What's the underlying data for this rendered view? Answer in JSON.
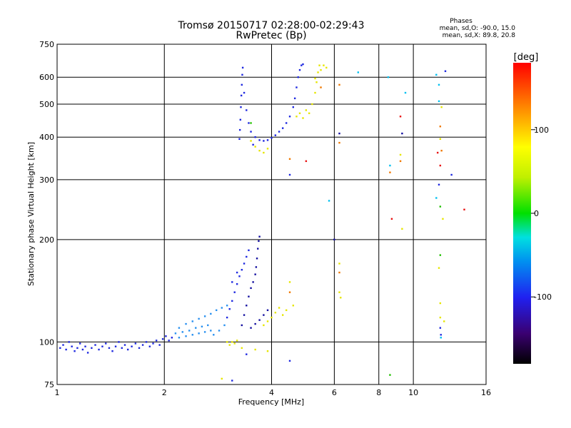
{
  "chart_data": {
    "type": "scatter",
    "title": "Tromsø 20150717 02:28:00-02:29:43",
    "subtitle": "RwPretec (Bp)",
    "stats": {
      "heading": "Phases",
      "line1": "mean, sd,O: -90.0, 15.0",
      "line2": "mean, sd,X:  89.8, 20.8"
    },
    "xlabel": "Frequency [MHz]",
    "ylabel": "Stationary phase Virtual Height [km]",
    "x_scale": "log2",
    "y_scale": "log",
    "xlim": [
      1,
      16
    ],
    "ylim": [
      75,
      750
    ],
    "x_ticks": [
      1,
      2,
      4,
      6,
      8,
      10,
      16
    ],
    "y_ticks": [
      75,
      100,
      200,
      300,
      400,
      500,
      600,
      750
    ],
    "grid": true,
    "colorbar": {
      "label": "[deg]",
      "range": [
        -180,
        180
      ],
      "ticks": [
        100,
        0,
        -100
      ]
    },
    "colors": {
      "blue": "#1e28e0",
      "navy": "#1410a0",
      "lblue": "#2890f0",
      "cyan": "#00c0f0",
      "yellow": "#e6e600",
      "orange": "#f07800",
      "red": "#e81010",
      "green": "#20c000"
    },
    "points": [
      {
        "c": "blue",
        "f": 1.02,
        "h": 96
      },
      {
        "c": "blue",
        "f": 1.04,
        "h": 98
      },
      {
        "c": "blue",
        "f": 1.06,
        "h": 95
      },
      {
        "c": "blue",
        "f": 1.08,
        "h": 100
      },
      {
        "c": "blue",
        "f": 1.1,
        "h": 97
      },
      {
        "c": "blue",
        "f": 1.12,
        "h": 94
      },
      {
        "c": "blue",
        "f": 1.14,
        "h": 96
      },
      {
        "c": "blue",
        "f": 1.16,
        "h": 99
      },
      {
        "c": "blue",
        "f": 1.18,
        "h": 95
      },
      {
        "c": "blue",
        "f": 1.2,
        "h": 97
      },
      {
        "c": "blue",
        "f": 1.22,
        "h": 93
      },
      {
        "c": "blue",
        "f": 1.25,
        "h": 96
      },
      {
        "c": "blue",
        "f": 1.28,
        "h": 98
      },
      {
        "c": "blue",
        "f": 1.31,
        "h": 95
      },
      {
        "c": "blue",
        "f": 1.34,
        "h": 97
      },
      {
        "c": "blue",
        "f": 1.37,
        "h": 99
      },
      {
        "c": "blue",
        "f": 1.4,
        "h": 96
      },
      {
        "c": "blue",
        "f": 1.43,
        "h": 94
      },
      {
        "c": "blue",
        "f": 1.46,
        "h": 97
      },
      {
        "c": "blue",
        "f": 1.49,
        "h": 100
      },
      {
        "c": "blue",
        "f": 1.52,
        "h": 96
      },
      {
        "c": "blue",
        "f": 1.55,
        "h": 98
      },
      {
        "c": "blue",
        "f": 1.58,
        "h": 95
      },
      {
        "c": "blue",
        "f": 1.62,
        "h": 97
      },
      {
        "c": "blue",
        "f": 1.66,
        "h": 99
      },
      {
        "c": "blue",
        "f": 1.7,
        "h": 96
      },
      {
        "c": "blue",
        "f": 1.74,
        "h": 98
      },
      {
        "c": "blue",
        "f": 1.78,
        "h": 100
      },
      {
        "c": "blue",
        "f": 1.82,
        "h": 97
      },
      {
        "c": "blue",
        "f": 1.86,
        "h": 99
      },
      {
        "c": "blue",
        "f": 1.9,
        "h": 101
      },
      {
        "c": "blue",
        "f": 1.94,
        "h": 98
      },
      {
        "c": "blue",
        "f": 1.98,
        "h": 102
      },
      {
        "c": "blue",
        "f": 2.02,
        "h": 104
      },
      {
        "c": "blue",
        "f": 2.06,
        "h": 101
      },
      {
        "c": "blue",
        "f": 2.1,
        "h": 103
      },
      {
        "c": "lblue",
        "f": 2.15,
        "h": 106
      },
      {
        "c": "lblue",
        "f": 2.2,
        "h": 103
      },
      {
        "c": "lblue",
        "f": 2.25,
        "h": 107
      },
      {
        "c": "lblue",
        "f": 2.3,
        "h": 104
      },
      {
        "c": "lblue",
        "f": 2.35,
        "h": 108
      },
      {
        "c": "lblue",
        "f": 2.4,
        "h": 105
      },
      {
        "c": "lblue",
        "f": 2.45,
        "h": 110
      },
      {
        "c": "lblue",
        "f": 2.5,
        "h": 106
      },
      {
        "c": "lblue",
        "f": 2.55,
        "h": 111
      },
      {
        "c": "lblue",
        "f": 2.6,
        "h": 107
      },
      {
        "c": "lblue",
        "f": 2.65,
        "h": 112
      },
      {
        "c": "lblue",
        "f": 2.7,
        "h": 108
      },
      {
        "c": "lblue",
        "f": 2.2,
        "h": 110
      },
      {
        "c": "lblue",
        "f": 2.3,
        "h": 113
      },
      {
        "c": "lblue",
        "f": 2.4,
        "h": 115
      },
      {
        "c": "lblue",
        "f": 2.5,
        "h": 117
      },
      {
        "c": "lblue",
        "f": 2.6,
        "h": 119
      },
      {
        "c": "lblue",
        "f": 2.7,
        "h": 121
      },
      {
        "c": "lblue",
        "f": 2.8,
        "h": 124
      },
      {
        "c": "lblue",
        "f": 2.9,
        "h": 126
      },
      {
        "c": "lblue",
        "f": 3.0,
        "h": 128
      },
      {
        "c": "lblue",
        "f": 2.75,
        "h": 105
      },
      {
        "c": "lblue",
        "f": 2.85,
        "h": 108
      },
      {
        "c": "lblue",
        "f": 2.95,
        "h": 112
      },
      {
        "c": "blue",
        "f": 3.0,
        "h": 118
      },
      {
        "c": "blue",
        "f": 3.05,
        "h": 125
      },
      {
        "c": "blue",
        "f": 3.1,
        "h": 132
      },
      {
        "c": "blue",
        "f": 3.15,
        "h": 140
      },
      {
        "c": "blue",
        "f": 3.2,
        "h": 148
      },
      {
        "c": "blue",
        "f": 3.25,
        "h": 156
      },
      {
        "c": "blue",
        "f": 3.3,
        "h": 163
      },
      {
        "c": "blue",
        "f": 3.35,
        "h": 170
      },
      {
        "c": "blue",
        "f": 3.4,
        "h": 178
      },
      {
        "c": "blue",
        "f": 3.45,
        "h": 186
      },
      {
        "c": "blue",
        "f": 3.1,
        "h": 150
      },
      {
        "c": "blue",
        "f": 3.2,
        "h": 160
      },
      {
        "c": "navy",
        "f": 3.3,
        "h": 112
      },
      {
        "c": "navy",
        "f": 3.35,
        "h": 120
      },
      {
        "c": "navy",
        "f": 3.4,
        "h": 128
      },
      {
        "c": "navy",
        "f": 3.45,
        "h": 136
      },
      {
        "c": "navy",
        "f": 3.5,
        "h": 144
      },
      {
        "c": "navy",
        "f": 3.55,
        "h": 150
      },
      {
        "c": "navy",
        "f": 3.6,
        "h": 158
      },
      {
        "c": "navy",
        "f": 3.62,
        "h": 166
      },
      {
        "c": "navy",
        "f": 3.64,
        "h": 176
      },
      {
        "c": "navy",
        "f": 3.66,
        "h": 188
      },
      {
        "c": "navy",
        "f": 3.68,
        "h": 198
      },
      {
        "c": "navy",
        "f": 3.7,
        "h": 204
      },
      {
        "c": "navy",
        "f": 3.5,
        "h": 110
      },
      {
        "c": "navy",
        "f": 3.6,
        "h": 113
      },
      {
        "c": "navy",
        "f": 3.7,
        "h": 116
      },
      {
        "c": "navy",
        "f": 3.8,
        "h": 120
      },
      {
        "c": "navy",
        "f": 3.9,
        "h": 124
      },
      {
        "c": "yellow",
        "f": 3.8,
        "h": 112
      },
      {
        "c": "yellow",
        "f": 3.9,
        "h": 115
      },
      {
        "c": "yellow",
        "f": 4.0,
        "h": 118
      },
      {
        "c": "yellow",
        "f": 4.1,
        "h": 122
      },
      {
        "c": "yellow",
        "f": 4.2,
        "h": 126
      },
      {
        "c": "yellow",
        "f": 4.3,
        "h": 120
      },
      {
        "c": "yellow",
        "f": 4.4,
        "h": 124
      },
      {
        "c": "yellow",
        "f": 4.6,
        "h": 128
      },
      {
        "c": "yellow",
        "f": 4.5,
        "h": 150
      },
      {
        "c": "orange",
        "f": 4.5,
        "h": 140
      },
      {
        "c": "yellow",
        "f": 3.0,
        "h": 100
      },
      {
        "c": "yellow",
        "f": 3.05,
        "h": 98
      },
      {
        "c": "yellow",
        "f": 3.1,
        "h": 100
      },
      {
        "c": "yellow",
        "f": 3.15,
        "h": 99
      },
      {
        "c": "yellow",
        "f": 3.2,
        "h": 101
      },
      {
        "c": "yellow",
        "f": 3.3,
        "h": 96
      },
      {
        "c": "yellow",
        "f": 3.6,
        "h": 95
      },
      {
        "c": "yellow",
        "f": 3.9,
        "h": 94
      },
      {
        "c": "yellow",
        "f": 2.9,
        "h": 78
      },
      {
        "c": "blue",
        "f": 3.1,
        "h": 77
      },
      {
        "c": "blue",
        "f": 3.4,
        "h": 92
      },
      {
        "c": "blue",
        "f": 4.5,
        "h": 88
      },
      {
        "c": "blue",
        "f": 3.25,
        "h": 395
      },
      {
        "c": "blue",
        "f": 3.26,
        "h": 420
      },
      {
        "c": "blue",
        "f": 3.27,
        "h": 450
      },
      {
        "c": "blue",
        "f": 3.28,
        "h": 490
      },
      {
        "c": "blue",
        "f": 3.29,
        "h": 530
      },
      {
        "c": "blue",
        "f": 3.3,
        "h": 570
      },
      {
        "c": "blue",
        "f": 3.31,
        "h": 610
      },
      {
        "c": "blue",
        "f": 3.32,
        "h": 640
      },
      {
        "c": "blue",
        "f": 3.35,
        "h": 540
      },
      {
        "c": "blue",
        "f": 3.4,
        "h": 480
      },
      {
        "c": "blue",
        "f": 3.45,
        "h": 440
      },
      {
        "c": "blue",
        "f": 3.5,
        "h": 415
      },
      {
        "c": "blue",
        "f": 3.6,
        "h": 400
      },
      {
        "c": "blue",
        "f": 3.7,
        "h": 392
      },
      {
        "c": "blue",
        "f": 3.8,
        "h": 390
      },
      {
        "c": "blue",
        "f": 3.9,
        "h": 392
      },
      {
        "c": "blue",
        "f": 4.0,
        "h": 398
      },
      {
        "c": "blue",
        "f": 4.1,
        "h": 405
      },
      {
        "c": "blue",
        "f": 4.2,
        "h": 415
      },
      {
        "c": "blue",
        "f": 4.3,
        "h": 425
      },
      {
        "c": "blue",
        "f": 4.4,
        "h": 440
      },
      {
        "c": "blue",
        "f": 4.5,
        "h": 460
      },
      {
        "c": "blue",
        "f": 4.6,
        "h": 490
      },
      {
        "c": "blue",
        "f": 4.65,
        "h": 520
      },
      {
        "c": "blue",
        "f": 4.7,
        "h": 560
      },
      {
        "c": "blue",
        "f": 4.75,
        "h": 600
      },
      {
        "c": "blue",
        "f": 4.8,
        "h": 630
      },
      {
        "c": "blue",
        "f": 4.85,
        "h": 650
      },
      {
        "c": "blue",
        "f": 4.9,
        "h": 655
      },
      {
        "c": "blue",
        "f": 3.55,
        "h": 380
      },
      {
        "c": "yellow",
        "f": 3.5,
        "h": 390
      },
      {
        "c": "yellow",
        "f": 3.6,
        "h": 375
      },
      {
        "c": "yellow",
        "f": 3.7,
        "h": 365
      },
      {
        "c": "yellow",
        "f": 3.8,
        "h": 360
      },
      {
        "c": "yellow",
        "f": 3.9,
        "h": 370
      },
      {
        "c": "yellow",
        "f": 4.7,
        "h": 460
      },
      {
        "c": "yellow",
        "f": 4.8,
        "h": 470
      },
      {
        "c": "yellow",
        "f": 4.9,
        "h": 455
      },
      {
        "c": "yellow",
        "f": 5.0,
        "h": 480
      },
      {
        "c": "yellow",
        "f": 5.1,
        "h": 470
      },
      {
        "c": "yellow",
        "f": 5.2,
        "h": 500
      },
      {
        "c": "yellow",
        "f": 5.3,
        "h": 540
      },
      {
        "c": "yellow",
        "f": 5.35,
        "h": 580
      },
      {
        "c": "yellow",
        "f": 5.4,
        "h": 620
      },
      {
        "c": "yellow",
        "f": 5.45,
        "h": 650
      },
      {
        "c": "yellow",
        "f": 5.5,
        "h": 630
      },
      {
        "c": "yellow",
        "f": 5.6,
        "h": 650
      },
      {
        "c": "yellow",
        "f": 5.7,
        "h": 640
      },
      {
        "c": "orange",
        "f": 5.5,
        "h": 560
      },
      {
        "c": "yellow",
        "f": 5.3,
        "h": 595
      },
      {
        "c": "green",
        "f": 3.5,
        "h": 440
      },
      {
        "c": "orange",
        "f": 4.5,
        "h": 345
      },
      {
        "c": "red",
        "f": 5.0,
        "h": 340
      },
      {
        "c": "blue",
        "f": 4.5,
        "h": 310
      },
      {
        "c": "navy",
        "f": 6.2,
        "h": 410
      },
      {
        "c": "orange",
        "f": 6.2,
        "h": 385
      },
      {
        "c": "orange",
        "f": 6.2,
        "h": 570
      },
      {
        "c": "cyan",
        "f": 5.8,
        "h": 260
      },
      {
        "c": "navy",
        "f": 6.0,
        "h": 200
      },
      {
        "c": "orange",
        "f": 6.2,
        "h": 160
      },
      {
        "c": "yellow",
        "f": 6.2,
        "h": 170
      },
      {
        "c": "yellow",
        "f": 6.2,
        "h": 140
      },
      {
        "c": "yellow",
        "f": 6.25,
        "h": 135
      },
      {
        "c": "cyan",
        "f": 7.0,
        "h": 620
      },
      {
        "c": "cyan",
        "f": 8.5,
        "h": 600
      },
      {
        "c": "cyan",
        "f": 8.6,
        "h": 330
      },
      {
        "c": "orange",
        "f": 8.6,
        "h": 315
      },
      {
        "c": "red",
        "f": 8.7,
        "h": 230
      },
      {
        "c": "green",
        "f": 8.6,
        "h": 80
      },
      {
        "c": "red",
        "f": 9.2,
        "h": 460
      },
      {
        "c": "navy",
        "f": 9.3,
        "h": 410
      },
      {
        "c": "yellow",
        "f": 9.2,
        "h": 355
      },
      {
        "c": "orange",
        "f": 9.2,
        "h": 340
      },
      {
        "c": "yellow",
        "f": 9.3,
        "h": 215
      },
      {
        "c": "cyan",
        "f": 9.5,
        "h": 540
      },
      {
        "c": "cyan",
        "f": 11.6,
        "h": 610
      },
      {
        "c": "cyan",
        "f": 11.8,
        "h": 570
      },
      {
        "c": "cyan",
        "f": 11.8,
        "h": 510
      },
      {
        "c": "yellow",
        "f": 12.0,
        "h": 490
      },
      {
        "c": "orange",
        "f": 11.9,
        "h": 430
      },
      {
        "c": "yellow",
        "f": 11.9,
        "h": 395
      },
      {
        "c": "red",
        "f": 11.7,
        "h": 360
      },
      {
        "c": "orange",
        "f": 12.0,
        "h": 365
      },
      {
        "c": "red",
        "f": 11.9,
        "h": 330
      },
      {
        "c": "blue",
        "f": 11.8,
        "h": 290
      },
      {
        "c": "cyan",
        "f": 11.6,
        "h": 265
      },
      {
        "c": "green",
        "f": 11.9,
        "h": 250
      },
      {
        "c": "yellow",
        "f": 12.1,
        "h": 230
      },
      {
        "c": "blue",
        "f": 12.3,
        "h": 625
      },
      {
        "c": "blue",
        "f": 12.8,
        "h": 310
      },
      {
        "c": "red",
        "f": 13.9,
        "h": 245
      },
      {
        "c": "green",
        "f": 11.9,
        "h": 180
      },
      {
        "c": "yellow",
        "f": 11.9,
        "h": 130
      },
      {
        "c": "yellow",
        "f": 11.9,
        "h": 118
      },
      {
        "c": "blue",
        "f": 11.9,
        "h": 110
      },
      {
        "c": "blue",
        "f": 11.95,
        "h": 105
      },
      {
        "c": "cyan",
        "f": 11.95,
        "h": 103
      },
      {
        "c": "yellow",
        "f": 12.2,
        "h": 115
      },
      {
        "c": "yellow",
        "f": 11.8,
        "h": 165
      }
    ]
  }
}
